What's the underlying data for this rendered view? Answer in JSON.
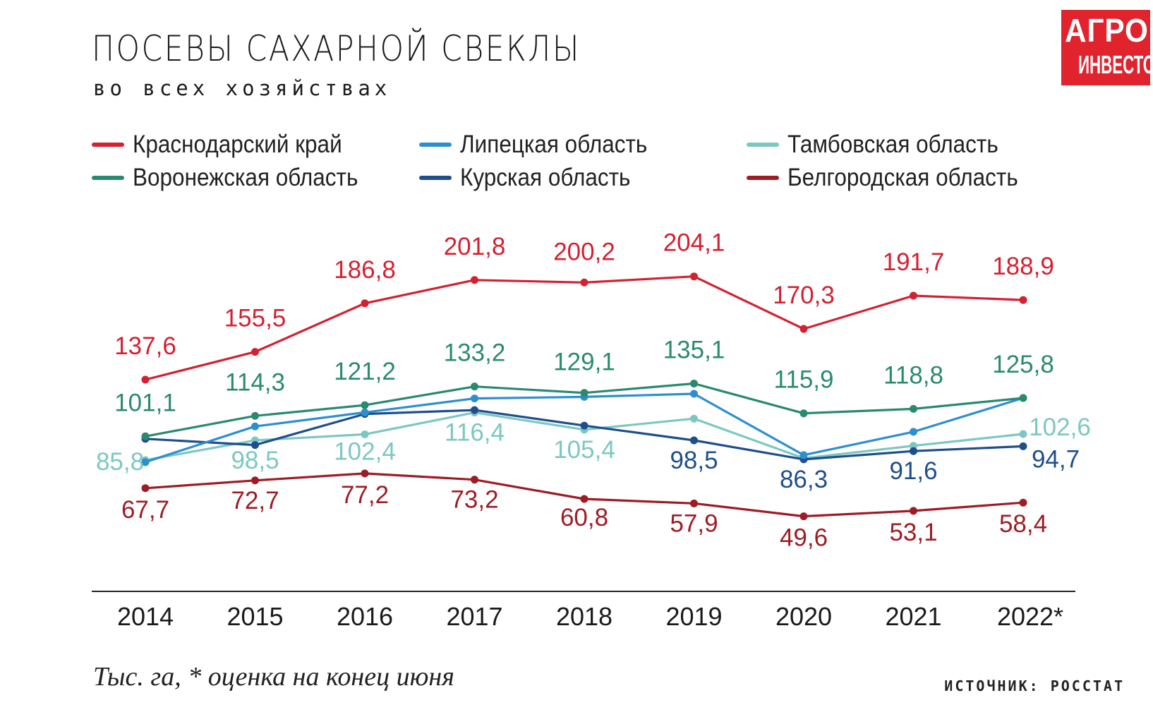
{
  "header": {
    "title": "ПОСЕВЫ САХАРНОЙ СВЕКЛЫ",
    "subtitle": "во всех хозяйствах"
  },
  "logo": {
    "line1": "АГРО",
    "line2": "ИНВЕСТОР"
  },
  "footer": {
    "note": "Тыс. га, * оценка на конец июня",
    "source": "ИСТОЧНИК: РОССТАТ"
  },
  "colors": {
    "krasnodar": "#d42030",
    "voronezh": "#2a8a70",
    "lipetsk": "#2d8fd0",
    "kursk": "#1f4e8c",
    "tambov": "#7cc8c0",
    "belgorod": "#9e1c24",
    "axis": "#222222",
    "logo": "#e0232d"
  },
  "chart_data": {
    "type": "line",
    "x": [
      "2014",
      "2015",
      "2016",
      "2017",
      "2018",
      "2019",
      "2020",
      "2021",
      "2022*"
    ],
    "series": [
      {
        "name": "Краснодарский край",
        "color_key": "krasnodar",
        "values": [
          137.6,
          155.5,
          186.8,
          201.8,
          200.2,
          204.1,
          170.3,
          191.7,
          188.9
        ],
        "labels": [
          "137,6",
          "155,5",
          "186,8",
          "201,8",
          "200,2",
          "204,1",
          "170,3",
          "191,7",
          "188,9"
        ]
      },
      {
        "name": "Воронежская область",
        "color_key": "voronezh",
        "values": [
          101.1,
          114.3,
          121.2,
          133.2,
          129.1,
          135.1,
          115.9,
          118.8,
          125.8
        ],
        "labels": [
          "101,1",
          "114,3",
          "121,2",
          "133,2",
          "129,1",
          "135,1",
          "115,9",
          "118,8",
          "125,8"
        ]
      },
      {
        "name": "Липецкая область",
        "color_key": "lipetsk",
        "values": [
          84.5,
          107.5,
          116.5,
          125.5,
          126.5,
          128.5,
          89.0,
          104.0,
          125.8
        ],
        "labels": []
      },
      {
        "name": "Курская область",
        "color_key": "kursk",
        "values": [
          99.5,
          95.5,
          115.5,
          118.0,
          108.0,
          98.5,
          86.3,
          91.6,
          94.7
        ],
        "labels": [
          "",
          "",
          "",
          "",
          "",
          "98,5",
          "86,3",
          "91,6",
          "94,7"
        ]
      },
      {
        "name": "Тамбовская область",
        "color_key": "tambov",
        "values": [
          85.8,
          98.5,
          102.4,
          116.4,
          105.4,
          112.5,
          87.0,
          95.0,
          102.6
        ],
        "labels": [
          "85,8",
          "98,5",
          "102,4",
          "116,4",
          "105,4",
          "",
          "",
          "",
          "102,6"
        ]
      },
      {
        "name": "Белгородская область",
        "color_key": "belgorod",
        "values": [
          67.7,
          72.7,
          77.2,
          73.2,
          60.8,
          57.9,
          49.6,
          53.1,
          58.4
        ],
        "labels": [
          "67,7",
          "72,7",
          "77,2",
          "73,2",
          "60,8",
          "57,9",
          "49,6",
          "53,1",
          "58,4"
        ]
      }
    ],
    "legend_order": [
      "Краснодарский край",
      "Липецкая область",
      "Тамбовская область",
      "Воронежская область",
      "Курская область",
      "Белгородская область"
    ],
    "legend_placement": "top",
    "ylim": [
      40,
      215
    ],
    "grid": false
  }
}
